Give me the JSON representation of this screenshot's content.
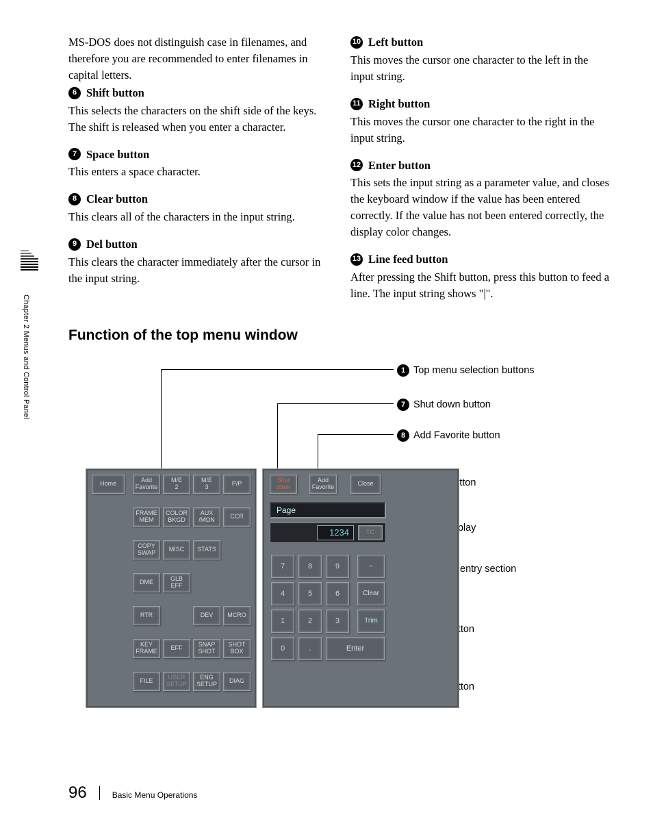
{
  "left_col": {
    "intro": "MS-DOS does not distinguish case in filenames, and therefore you are recommended to enter filenames in capital letters.",
    "items": [
      {
        "n": "6",
        "title": "Shift button",
        "body": "This selects the characters on the shift side of the keys. The shift is released when you enter a character."
      },
      {
        "n": "7",
        "title": "Space button",
        "body": "This enters a space character."
      },
      {
        "n": "8",
        "title": "Clear button",
        "body": "This clears all of the characters in the input string."
      },
      {
        "n": "9",
        "title": "Del button",
        "body": "This clears the character immediately after the cursor in the input string."
      }
    ]
  },
  "right_col": {
    "items": [
      {
        "n": "10",
        "title": "Left button",
        "body": "This moves the cursor one character to the left in the input string."
      },
      {
        "n": "11",
        "title": "Right button",
        "body": "This moves the cursor one character to the right in the input string."
      },
      {
        "n": "12",
        "title": "Enter button",
        "body": "This sets the input string as a parameter value, and closes the keyboard window if the value has been entered correctly. If the value has not been entered correctly, the display color changes."
      },
      {
        "n": "13",
        "title": "Line feed button",
        "body": "After pressing the Shift button, press this button to feed a line. The input string shows \"|\"."
      }
    ]
  },
  "section_heading": "Function of the top menu window",
  "sidebar": "Chapter 2  Menus and Control Panel",
  "callouts": {
    "c1": "Top menu selection buttons",
    "c7": "Shut down button",
    "c8": "Add Favorite button",
    "c6": "Close button",
    "c2": "Input display",
    "c3": "Numeric entry section",
    "c4": "Clear button",
    "c5": "Enter button"
  },
  "ui": {
    "home": "Home",
    "left_row1": [
      "Add\nFavorite",
      "M/E\n2",
      "M/E\n3",
      "P/P"
    ],
    "left_row2": [
      "FRAME\nMEM",
      "COLOR\nBKGD",
      "AUX\n/MON",
      "CCR"
    ],
    "left_row3": [
      "COPY\nSWAP",
      "MISC",
      "STATS",
      ""
    ],
    "left_row4": [
      "DME",
      "GLB\nEFF",
      "",
      ""
    ],
    "left_row5": [
      "RTR",
      "",
      "DEV",
      "MCRO"
    ],
    "left_row6": [
      "KEY\nFRAME",
      "EFF",
      "SNAP\nSHOT",
      "SHOT\nBOX"
    ],
    "left_row7": [
      "FILE",
      "USER\nSETUP",
      "ENG\nSETUP",
      "DIAG"
    ],
    "shut": "Shut\ndown",
    "addfav": "Add\nFavorite",
    "close": "Close",
    "page_label": "Page",
    "page_val": "1234",
    "tc": "TC",
    "k7": "7",
    "k8": "8",
    "k9": "9",
    "kminus": "−",
    "k4": "4",
    "k5": "5",
    "k6": "6",
    "kclear": "Clear",
    "k1": "1",
    "k2": "2",
    "k3": "3",
    "ktrim": "Trim",
    "k0": "0",
    "kdot": ".",
    "kenter": "Enter"
  },
  "footer": {
    "page": "96",
    "title": "Basic Menu Operations"
  }
}
